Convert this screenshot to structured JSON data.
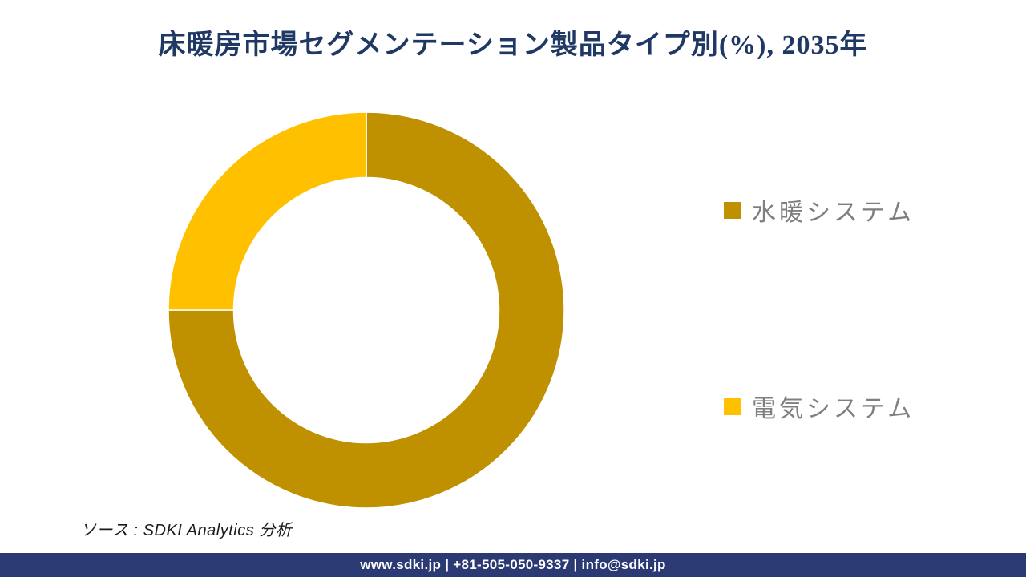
{
  "chart_data": {
    "type": "pie",
    "subtype": "donut",
    "title": "床暖房市場セグメンテーション製品タイプ別(%), 2035年",
    "labels": [
      "水暖システム",
      "電気システム"
    ],
    "values": [
      75,
      25
    ],
    "colors": [
      "#BF9000",
      "#FFC000"
    ],
    "legend_position": "right",
    "start_angle_deg": 0,
    "direction": "clockwise",
    "inner_radius_ratio": 0.67
  },
  "colors": {
    "title_text": "#1F3864",
    "legend_text": "#7F7F7F",
    "footer_bg": "#2B3A73",
    "footer_text": "#FFFFFF",
    "segment_divider": "#FFFFFF"
  },
  "source_line": "ソース : SDKI Analytics 分析",
  "footer": {
    "text": "www.sdki.jp | +81-505-050-9337 | info@sdki.jp"
  }
}
